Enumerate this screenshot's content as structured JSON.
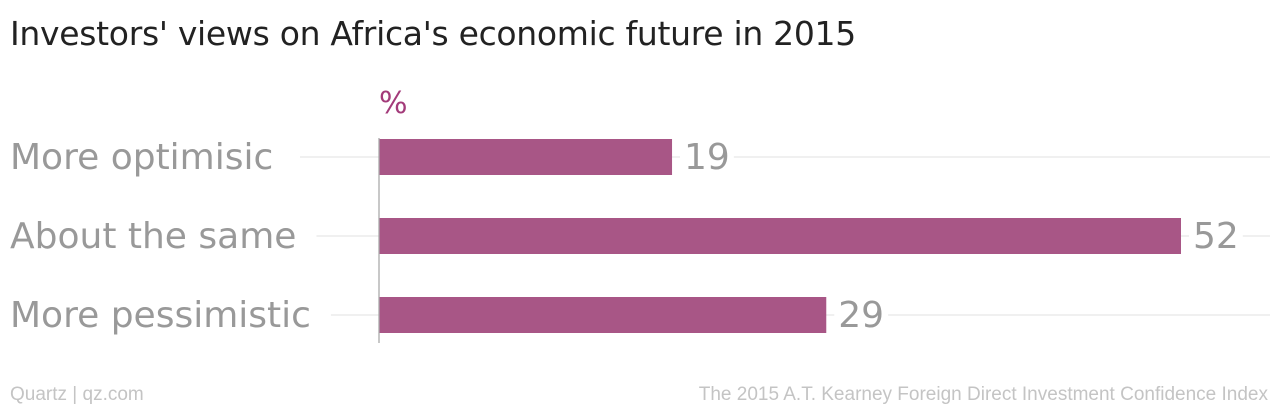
{
  "chart_data": {
    "type": "bar",
    "orientation": "horizontal",
    "title": "Investors' views on Africa's economic future in 2015",
    "unit_label": "%",
    "categories": [
      "More optimisic",
      "About the same",
      "More pessimistic"
    ],
    "values": [
      19,
      52,
      29
    ],
    "xlim": [
      0,
      52
    ],
    "grid": true,
    "bar_color": "#a85686",
    "unit_color": "#a33b7a"
  },
  "footer": {
    "credit": "Quartz | qz.com",
    "source": "The 2015 A.T. Kearney Foreign Direct Investment Confidence Index"
  }
}
